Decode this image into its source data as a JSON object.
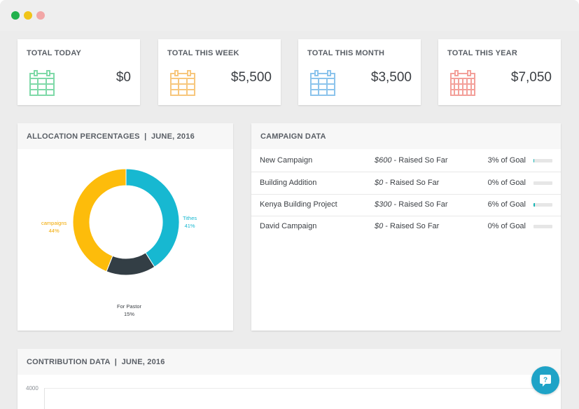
{
  "window": {
    "controls": [
      "close",
      "minimize",
      "maximize"
    ]
  },
  "stats": [
    {
      "title": "TOTAL TODAY",
      "value": "$0",
      "icon": "calendar-icon",
      "color": "#7fd9a8"
    },
    {
      "title": "TOTAL THIS WEEK",
      "value": "$5,500",
      "icon": "calendar-icon",
      "color": "#f7c77d"
    },
    {
      "title": "TOTAL THIS MONTH",
      "value": "$3,500",
      "icon": "calendar-icon",
      "color": "#8cc4ec"
    },
    {
      "title": "TOTAL THIS YEAR",
      "value": "$7,050",
      "icon": "calendar-icon",
      "color": "#f3a09a"
    }
  ],
  "allocation": {
    "title": "ALLOCATION PERCENTAGES  |  JUNE, 2016",
    "labels": {
      "tithes": {
        "name": "Tithes",
        "pct": "41%"
      },
      "campaigns": {
        "name": "campaigns",
        "pct": "44%"
      },
      "pastor": {
        "name": "For Pastor",
        "pct": "15%"
      }
    }
  },
  "chart_data": {
    "type": "pie",
    "categories": [
      "Tithes",
      "For Pastor",
      "campaigns"
    ],
    "values": [
      41,
      15,
      44
    ],
    "colors": [
      "#17b8d1",
      "#333e45",
      "#fdbc0b"
    ],
    "title": "ALLOCATION PERCENTAGES | JUNE, 2016"
  },
  "campaign": {
    "title": "CAMPAIGN DATA",
    "rows": [
      {
        "name": "New Campaign",
        "amount": "$600",
        "suffix": " - Raised So Far",
        "goal": "3% of Goal",
        "progress": 3
      },
      {
        "name": "Building Addition",
        "amount": "$0",
        "suffix": " - Raised So Far",
        "goal": "0% of Goal",
        "progress": 0
      },
      {
        "name": "Kenya Building Project",
        "amount": "$300",
        "suffix": " - Raised So Far",
        "goal": "6% of Goal",
        "progress": 6
      },
      {
        "name": "David Campaign",
        "amount": "$0",
        "suffix": " - Raised So Far",
        "goal": "0% of Goal",
        "progress": 0
      }
    ]
  },
  "contribution": {
    "title": "CONTRIBUTION DATA  |  JUNE, 2016",
    "y_tick": "4000"
  },
  "help": {
    "icon": "chat-help-icon"
  }
}
